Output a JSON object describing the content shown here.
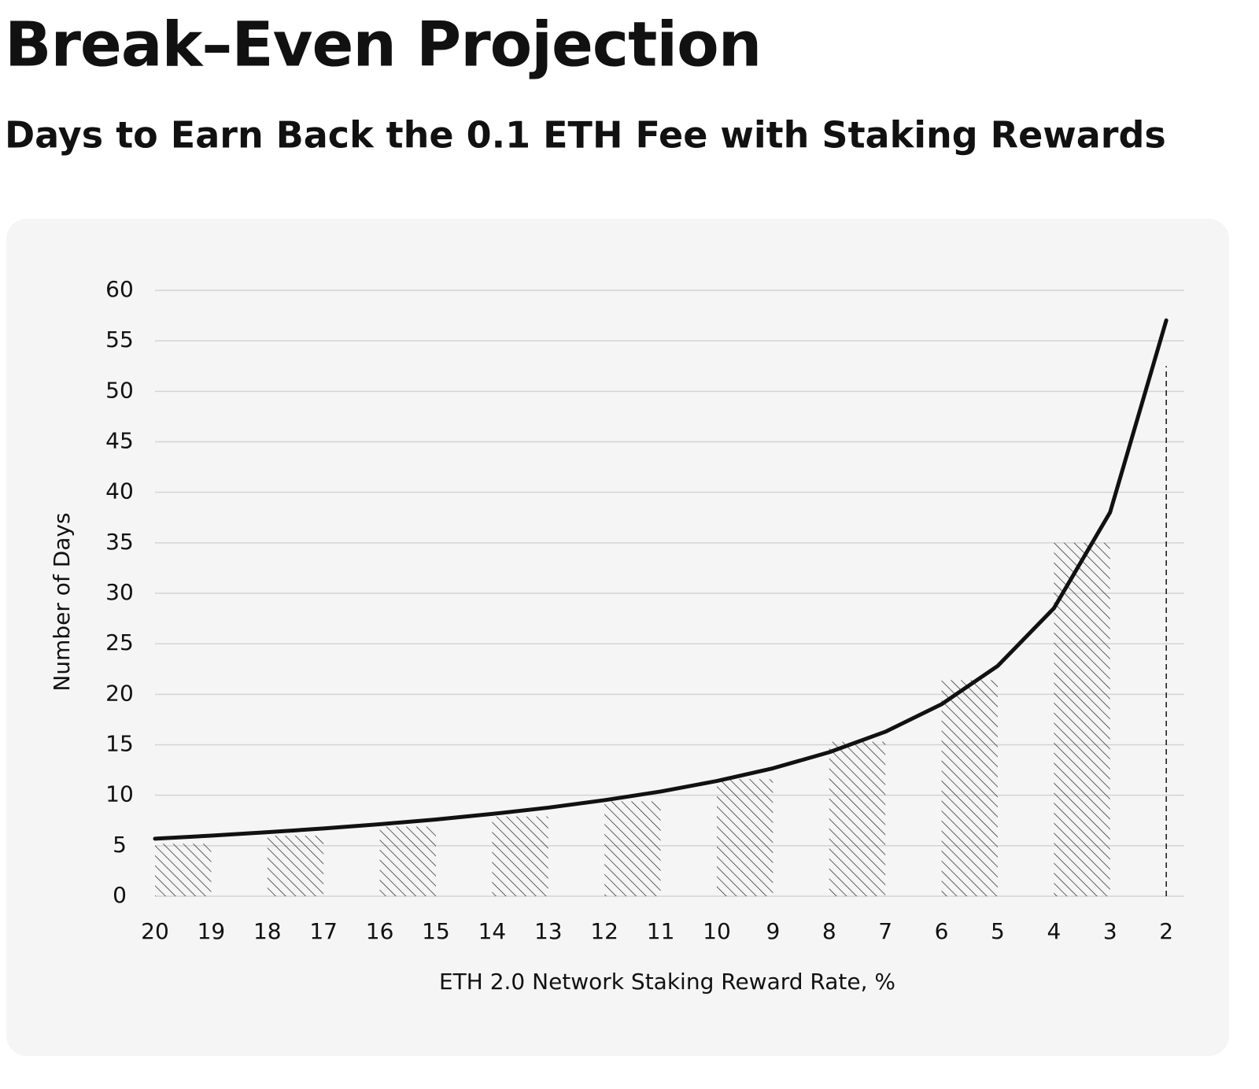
{
  "chart_data": {
    "type": "line",
    "title": "Break–Even Projection",
    "subtitle": "Days to Earn Back the 0.1 ETH Fee with Staking Rewards",
    "x_label": "ETH 2.0 Network Staking Reward Rate, %",
    "y_label": "Number of Days",
    "x": [
      20,
      19,
      18,
      17,
      16,
      15,
      14,
      13,
      12,
      11,
      10,
      9,
      8,
      7,
      6,
      5,
      4,
      3,
      2
    ],
    "series": [
      {
        "color": "#111111",
        "values": [
          5.7,
          6.0,
          6.34,
          6.71,
          7.13,
          7.6,
          8.15,
          8.77,
          9.51,
          10.37,
          11.41,
          12.67,
          14.26,
          16.29,
          19.01,
          22.81,
          28.52,
          38.02,
          57.03
        ]
      }
    ],
    "bars": {
      "color": "#222222",
      "x_start": [
        20,
        18,
        16,
        14,
        12,
        10,
        8,
        6,
        4
      ],
      "x_end": [
        19,
        17,
        15,
        13,
        11,
        9,
        7,
        5,
        3
      ],
      "values": [
        5.2,
        6.0,
        6.9,
        7.9,
        9.4,
        11.6,
        15.3,
        21.4,
        35
      ]
    },
    "vline": {
      "x": 2,
      "y": 52.5
    },
    "xlim": [
      20,
      1.68
    ],
    "ylim": [
      0,
      60
    ],
    "xticks": [
      20,
      19,
      18,
      17,
      16,
      15,
      14,
      13,
      12,
      11,
      10,
      9,
      8,
      7,
      6,
      5,
      4,
      3,
      2
    ],
    "yticks": [
      0,
      5,
      10,
      15,
      20,
      25,
      30,
      35,
      40,
      45,
      50,
      55,
      60
    ],
    "grid": true
  }
}
